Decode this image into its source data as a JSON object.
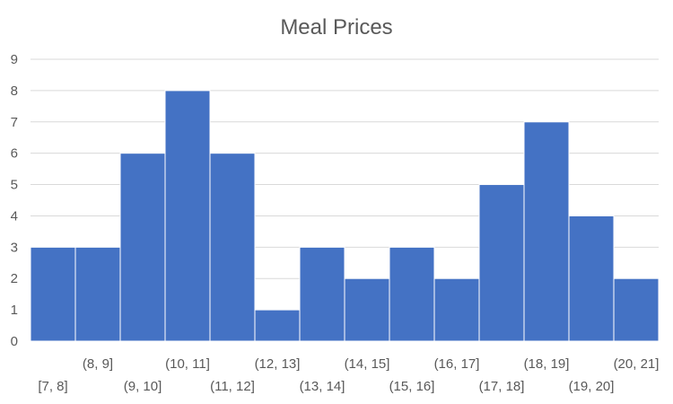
{
  "chart_data": {
    "type": "bar",
    "title": "Meal Prices",
    "categories": [
      "[7, 8]",
      "(8, 9]",
      "(9, 10]",
      "(10, 11]",
      "(11, 12]",
      "(12, 13]",
      "(13, 14]",
      "(14, 15]",
      "(15, 16]",
      "(16, 17]",
      "(17, 18]",
      "(18, 19]",
      "(19, 20]",
      "(20, 21]"
    ],
    "values": [
      3,
      3,
      6,
      8,
      6,
      1,
      3,
      2,
      3,
      2,
      5,
      7,
      4,
      2
    ],
    "ylim": [
      0,
      9
    ],
    "yticks": [
      "0",
      "1",
      "2",
      "3",
      "4",
      "5",
      "6",
      "7",
      "8",
      "9"
    ],
    "xlabel": "",
    "ylabel": "",
    "grid": true,
    "legend": "none",
    "bar_color": "#4472c4",
    "gridline_color": "#d9d9d9",
    "text_color": "#595959"
  }
}
